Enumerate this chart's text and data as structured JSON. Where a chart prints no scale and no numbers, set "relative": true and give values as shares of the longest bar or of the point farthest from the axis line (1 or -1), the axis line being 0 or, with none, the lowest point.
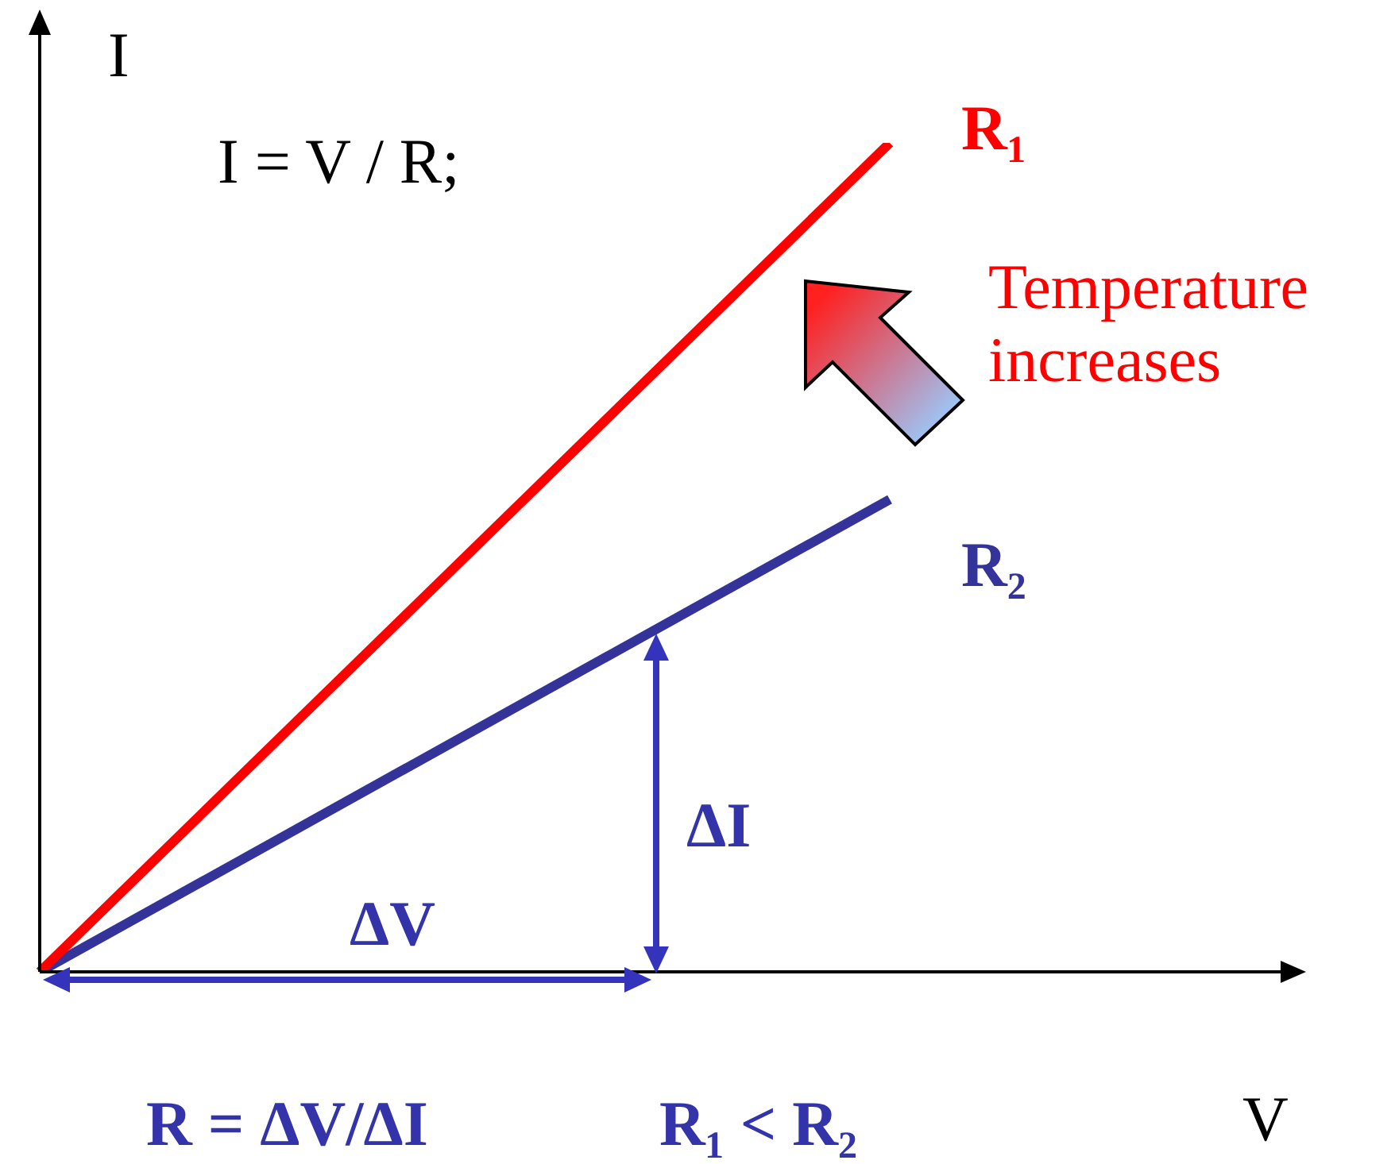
{
  "chart_data": {
    "type": "line",
    "relative": true,
    "xlabel": "V",
    "ylabel": "I",
    "categories": [
      null,
      null
    ],
    "series": [
      {
        "name": "R₁",
        "color": "#ff0000",
        "values": [
          0,
          1
        ]
      },
      {
        "name": "R₂",
        "color": "#333399",
        "values": [
          0,
          0.57
        ]
      }
    ],
    "annotations": [
      "I = V / R;",
      "Temperature increases",
      "ΔV",
      "ΔI",
      "R = ΔV/ΔI",
      "R₁ < R₂"
    ],
    "legend": false,
    "marker": "none",
    "line_style": "solid"
  }
}
